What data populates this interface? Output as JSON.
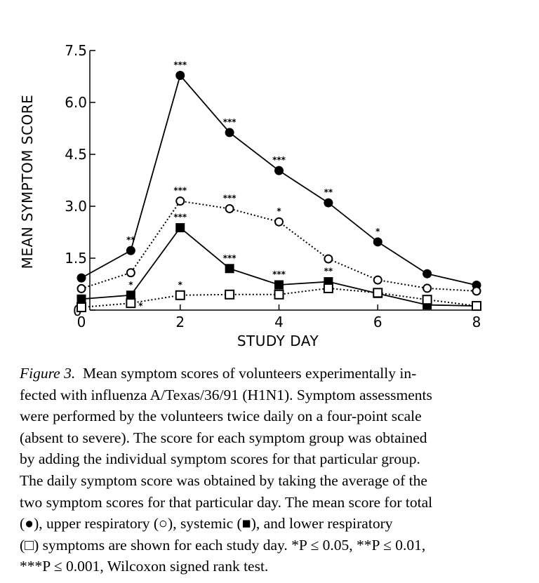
{
  "chart_data": {
    "type": "line",
    "xlabel": "STUDY DAY",
    "ylabel": "MEAN SYMPTOM SCORE",
    "xlim": [
      0,
      8
    ],
    "ylim": [
      0,
      7.5
    ],
    "xticks": [
      "0",
      "2",
      "4",
      "6",
      "8"
    ],
    "yticks": [
      "0",
      "1.5",
      "3.0",
      "4.5",
      "6.0",
      "7.5"
    ],
    "x": [
      0,
      1,
      2,
      3,
      4,
      5,
      6,
      7,
      8
    ],
    "series": [
      {
        "name": "total",
        "marker": "filled-circle",
        "line": "solid",
        "values": [
          0.93,
          1.72,
          6.78,
          5.13,
          4.03,
          3.1,
          1.97,
          1.05,
          0.72
        ],
        "significance": [
          "",
          "**",
          "***",
          "***",
          "***",
          "**",
          "*",
          "",
          ""
        ]
      },
      {
        "name": "upper respiratory",
        "marker": "open-circle",
        "line": "dotted",
        "values": [
          0.62,
          1.08,
          3.15,
          2.93,
          2.55,
          1.48,
          0.87,
          0.63,
          0.55
        ],
        "significance": [
          "",
          "",
          "***",
          "***",
          "*",
          "",
          "",
          "",
          ""
        ]
      },
      {
        "name": "systemic",
        "marker": "filled-square",
        "line": "solid",
        "values": [
          0.32,
          0.43,
          2.38,
          1.2,
          0.73,
          0.82,
          0.48,
          0.15,
          0.12
        ],
        "significance": [
          "",
          "*",
          "***",
          "***",
          "***",
          "**",
          "",
          "",
          ""
        ]
      },
      {
        "name": "lower respiratory",
        "marker": "open-square",
        "line": "dotted",
        "values": [
          0.08,
          0.2,
          0.43,
          0.45,
          0.45,
          0.63,
          0.5,
          0.3,
          0.12
        ],
        "significance": [
          "",
          "*",
          "*",
          "",
          "",
          "",
          "",
          "",
          ""
        ]
      }
    ]
  },
  "caption": {
    "figure_label": "Figure 3.",
    "lines": [
      "Mean symptom scores of volunteers experimentally in-",
      "fected with influenza A/Texas/36/91 (H1N1). Symptom assessments",
      "were performed by the volunteers twice daily on a four-point scale",
      "(absent to severe). The score for each symptom group was obtained",
      "by adding the individual symptom scores for that particular group.",
      "The daily symptom score was obtained by taking the average of the",
      "two symptom scores for that particular day. The mean score for total",
      "(●), upper respiratory (○), systemic (■), and lower respiratory",
      "(□) symptoms are shown for each study day. *P ≤ 0.05, **P ≤ 0.01,",
      "***P ≤ 0.001, Wilcoxon signed rank test."
    ]
  }
}
